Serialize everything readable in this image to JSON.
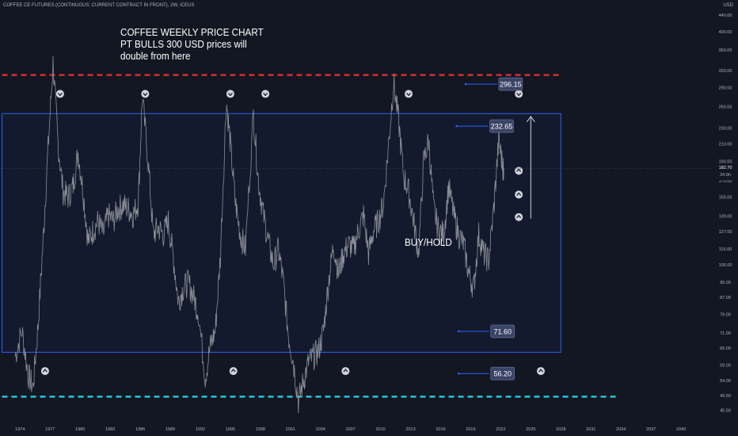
{
  "header": {
    "symbol": "COFFEE CE FUTURES (CONTINUOUS: CURRENT CONTRACT IN FRONT), 2W, ICEUS",
    "currency": "USD"
  },
  "annotation": {
    "lines": [
      "COFFEE WEEKLY PRICE CHART",
      "PT BULLS 300 USD prices will",
      "double from here"
    ]
  },
  "buy_hold_label": "BUY/HOLD",
  "colors": {
    "background": "#131722",
    "price": "#8c8f98",
    "box": "#2962ff",
    "resistance": "#d32f2f",
    "support": "#26c6da",
    "label_bg": "#3a4466"
  },
  "chart_data": {
    "type": "line",
    "title": "",
    "xlabel": "",
    "ylabel": "",
    "y_scale": "log",
    "ylim": [
      43,
      480
    ],
    "xlim": [
      1972,
      2043
    ],
    "x_ticks": [
      "1974",
      "1977",
      "1980",
      "1983",
      "1986",
      "1989",
      "1992",
      "1995",
      "1998",
      "2001",
      "2004",
      "2007",
      "2010",
      "2013",
      "2016",
      "2019",
      "2022",
      "2025",
      "2028",
      "2031",
      "2034",
      "2037",
      "2040"
    ],
    "y_ticks": [
      "440.00",
      "400.00",
      "360.00",
      "320.00",
      "290.00",
      "260.00",
      "230.00",
      "210.00",
      "190.00",
      "170.00",
      "155.00",
      "139.00",
      "127.00",
      "115.00",
      "105.00",
      "95.00",
      "87.00",
      "79.00",
      "71.00",
      "65.00",
      "59.00",
      "54.00",
      "49.50",
      "45.50"
    ],
    "last_price": "182.70",
    "last_change": "34.9h",
    "series": [
      {
        "name": "",
        "points": [
          [
            1973.5,
            62
          ],
          [
            1974.2,
            72
          ],
          [
            1974.8,
            56
          ],
          [
            1975.3,
            52
          ],
          [
            1975.8,
            74
          ],
          [
            1976.3,
            120
          ],
          [
            1976.8,
            205
          ],
          [
            1977.3,
            335
          ],
          [
            1977.8,
            210
          ],
          [
            1978.3,
            160
          ],
          [
            1978.8,
            155
          ],
          [
            1979.3,
            165
          ],
          [
            1979.8,
            200
          ],
          [
            1980.3,
            160
          ],
          [
            1980.8,
            120
          ],
          [
            1981.3,
            128
          ],
          [
            1981.8,
            135
          ],
          [
            1982.3,
            125
          ],
          [
            1982.8,
            140
          ],
          [
            1983.3,
            135
          ],
          [
            1983.8,
            145
          ],
          [
            1984.3,
            148
          ],
          [
            1984.8,
            145
          ],
          [
            1985.3,
            140
          ],
          [
            1985.8,
            150
          ],
          [
            1986.2,
            275
          ],
          [
            1986.8,
            190
          ],
          [
            1987.3,
            125
          ],
          [
            1987.8,
            130
          ],
          [
            1988.3,
            125
          ],
          [
            1988.8,
            135
          ],
          [
            1989.3,
            110
          ],
          [
            1989.8,
            85
          ],
          [
            1990.3,
            92
          ],
          [
            1990.8,
            95
          ],
          [
            1991.3,
            88
          ],
          [
            1991.8,
            80
          ],
          [
            1992.5,
            55
          ],
          [
            1993.0,
            66
          ],
          [
            1993.5,
            72
          ],
          [
            1994.0,
            110
          ],
          [
            1994.6,
            270
          ],
          [
            1995.0,
            210
          ],
          [
            1995.5,
            150
          ],
          [
            1996.0,
            125
          ],
          [
            1996.5,
            115
          ],
          [
            1997.3,
            250
          ],
          [
            1997.8,
            170
          ],
          [
            1998.3,
            140
          ],
          [
            1998.8,
            120
          ],
          [
            1999.3,
            105
          ],
          [
            1999.8,
            115
          ],
          [
            2000.3,
            95
          ],
          [
            2000.8,
            70
          ],
          [
            2001.3,
            60
          ],
          [
            2001.8,
            48
          ],
          [
            2002.3,
            54
          ],
          [
            2002.8,
            60
          ],
          [
            2003.3,
            62
          ],
          [
            2003.8,
            64
          ],
          [
            2004.3,
            72
          ],
          [
            2004.8,
            95
          ],
          [
            2005.3,
            118
          ],
          [
            2005.8,
            100
          ],
          [
            2006.3,
            112
          ],
          [
            2006.8,
            118
          ],
          [
            2007.3,
            115
          ],
          [
            2007.8,
            128
          ],
          [
            2008.3,
            140
          ],
          [
            2008.8,
            112
          ],
          [
            2009.3,
            128
          ],
          [
            2009.8,
            135
          ],
          [
            2010.3,
            150
          ],
          [
            2010.8,
            210
          ],
          [
            2011.3,
            300
          ],
          [
            2011.8,
            240
          ],
          [
            2012.3,
            175
          ],
          [
            2012.8,
            160
          ],
          [
            2013.3,
            135
          ],
          [
            2013.8,
            112
          ],
          [
            2014.3,
            190
          ],
          [
            2014.8,
            215
          ],
          [
            2015.3,
            145
          ],
          [
            2015.8,
            128
          ],
          [
            2016.3,
            125
          ],
          [
            2016.8,
            165
          ],
          [
            2017.3,
            140
          ],
          [
            2017.8,
            125
          ],
          [
            2018.3,
            118
          ],
          [
            2018.8,
            100
          ],
          [
            2019.3,
            92
          ],
          [
            2019.8,
            125
          ],
          [
            2020.3,
            112
          ],
          [
            2020.8,
            108
          ],
          [
            2021.3,
            145
          ],
          [
            2021.8,
            215
          ],
          [
            2022.2,
            185
          ],
          [
            2022.3,
            182.7
          ]
        ]
      }
    ],
    "range_box": {
      "x": [
        1972.2,
        2028.0
      ],
      "y": [
        63.5,
        250
      ]
    },
    "horizontal_lines": [
      {
        "name": "resistance",
        "y": 312,
        "x": [
          1972.2,
          2028.0
        ]
      },
      {
        "name": "support",
        "y": 49.2,
        "x": [
          1972.2,
          2033.5
        ]
      }
    ],
    "arrow": {
      "x": 2025.0,
      "y": [
        137,
        246
      ]
    },
    "price_labels": [
      {
        "text": "296.15",
        "x": 2021.8,
        "y": 296.15,
        "line_from": 2018.5
      },
      {
        "text": "232.65",
        "x": 2020.9,
        "y": 232.65,
        "line_from": 2017.6
      },
      {
        "text": "71.60",
        "x": 2021.0,
        "y": 71.6,
        "line_from": 2017.8
      },
      {
        "text": "56.20",
        "x": 2021.0,
        "y": 56.2,
        "line_from": 2017.8
      }
    ],
    "markers": [
      {
        "type": "sell",
        "x": 1978.0,
        "y": 280
      },
      {
        "type": "sell",
        "x": 1986.5,
        "y": 280
      },
      {
        "type": "sell",
        "x": 1995.0,
        "y": 280
      },
      {
        "type": "sell",
        "x": 1998.5,
        "y": 280
      },
      {
        "type": "sell",
        "x": 2012.8,
        "y": 280
      },
      {
        "type": "sell",
        "x": 2023.8,
        "y": 280
      },
      {
        "type": "buy",
        "x": 1976.5,
        "y": 57
      },
      {
        "type": "buy",
        "x": 1995.3,
        "y": 57
      },
      {
        "type": "buy",
        "x": 2006.5,
        "y": 57
      },
      {
        "type": "buy",
        "x": 2026.0,
        "y": 57
      },
      {
        "type": "buy",
        "x": 2023.8,
        "y": 180
      },
      {
        "type": "buy",
        "x": 2023.8,
        "y": 157
      },
      {
        "type": "buy",
        "x": 2023.8,
        "y": 138
      }
    ]
  }
}
